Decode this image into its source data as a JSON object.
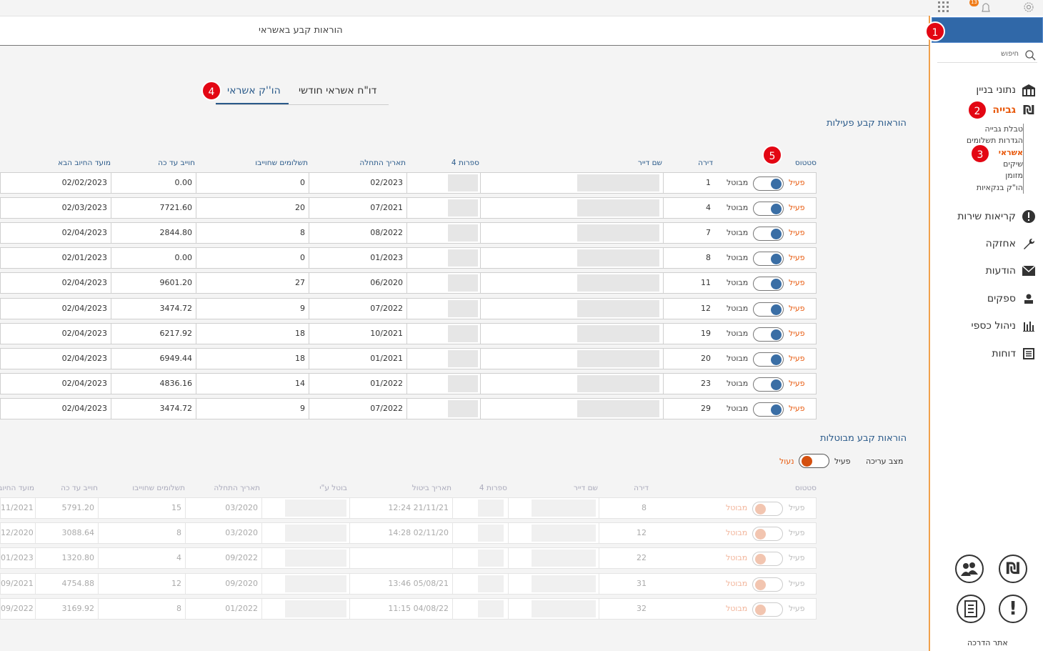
{
  "header": {
    "title": "הוראות קבע באשראי",
    "notification_count": "13"
  },
  "sidebar": {
    "search_placeholder": "חיפוש",
    "menu": [
      {
        "label": "נתוני בניין",
        "icon": "building-icon"
      },
      {
        "label": "גבייה",
        "icon": "shekel-icon"
      },
      {
        "label": "קריאות שירות",
        "icon": "alert-icon"
      },
      {
        "label": "אחזקה",
        "icon": "wrench-icon"
      },
      {
        "label": "הודעות",
        "icon": "envelope-icon"
      },
      {
        "label": "ספקים",
        "icon": "supplier-icon"
      },
      {
        "label": "ניהול כספי",
        "icon": "finance-icon"
      },
      {
        "label": "דוחות",
        "icon": "report-icon"
      }
    ],
    "submenu": [
      "טבלת גבייה",
      "הגדרות תשלומים",
      "אשראי",
      "שיקים",
      "מזומן",
      "הו\"ק בנקאיות"
    ],
    "footer": "אתר הדרכה"
  },
  "badges": [
    "1",
    "2",
    "3",
    "4",
    "5"
  ],
  "tabs": [
    "דו\"ח אשראי חודשי",
    "הו''ק אשראי"
  ],
  "active": {
    "title": "הוראות קבע פעילות",
    "headers": [
      "סטטוס",
      "דירה",
      "שם דייר",
      "4 ספרות",
      "תאריך התחלה",
      "תשלומים שחוייבו",
      "חוייב עד כה",
      "מועד החיוב הבא"
    ],
    "status_on": "פעיל",
    "status_off": "מבוטל",
    "rows": [
      {
        "apt": "1",
        "start": "02/2023",
        "paid": "0",
        "total": "0.00",
        "next": "02/02/2023"
      },
      {
        "apt": "4",
        "start": "07/2021",
        "paid": "20",
        "total": "7721.60",
        "next": "02/03/2023"
      },
      {
        "apt": "7",
        "start": "08/2022",
        "paid": "8",
        "total": "2844.80",
        "next": "02/04/2023"
      },
      {
        "apt": "8",
        "start": "01/2023",
        "paid": "0",
        "total": "0.00",
        "next": "02/01/2023"
      },
      {
        "apt": "11",
        "start": "06/2020",
        "paid": "27",
        "total": "9601.20",
        "next": "02/04/2023"
      },
      {
        "apt": "12",
        "start": "07/2022",
        "paid": "9",
        "total": "3474.72",
        "next": "02/04/2023"
      },
      {
        "apt": "19",
        "start": "10/2021",
        "paid": "18",
        "total": "6217.92",
        "next": "02/04/2023"
      },
      {
        "apt": "20",
        "start": "01/2021",
        "paid": "18",
        "total": "6949.44",
        "next": "02/04/2023"
      },
      {
        "apt": "23",
        "start": "01/2022",
        "paid": "14",
        "total": "4836.16",
        "next": "02/04/2023"
      },
      {
        "apt": "29",
        "start": "07/2022",
        "paid": "9",
        "total": "3474.72",
        "next": "02/04/2023"
      }
    ]
  },
  "cancelled": {
    "title": "הוראות קבע מבוטלות",
    "edit_mode_label": "מצב עריכה",
    "edit_on": "פעיל",
    "edit_off": "נעול",
    "headers": [
      "סטטוס",
      "דירה",
      "שם דייר",
      "4 ספרות",
      "תאריך ביטול",
      "בוטל ע\"י",
      "תאריך התחלה",
      "תשלומים שחוייבו",
      "חוייב עד כה",
      "מועד החיוב"
    ],
    "status_on": "פעיל",
    "status_off": "מבוטל",
    "rows": [
      {
        "apt": "8",
        "cancel": "12:24 21/11/21",
        "start": "03/2020",
        "paid": "15",
        "total": "5791.20",
        "next": "11/2021"
      },
      {
        "apt": "12",
        "cancel": "14:28 02/11/20",
        "start": "03/2020",
        "paid": "8",
        "total": "3088.64",
        "next": "12/2020"
      },
      {
        "apt": "22",
        "cancel": "",
        "start": "09/2022",
        "paid": "4",
        "total": "1320.80",
        "next": "01/2023"
      },
      {
        "apt": "31",
        "cancel": "13:46 05/08/21",
        "start": "09/2020",
        "paid": "12",
        "total": "4754.88",
        "next": "09/2021"
      },
      {
        "apt": "32",
        "cancel": "11:15 04/08/22",
        "start": "01/2022",
        "paid": "8",
        "total": "3169.92",
        "next": "09/2022"
      }
    ]
  },
  "colors": {
    "accent": "#e8590c",
    "primary": "#2a5a8a",
    "toggle": "#3a6ea5",
    "sidebar_border": "#f0a04b",
    "badge": "#e30613"
  }
}
